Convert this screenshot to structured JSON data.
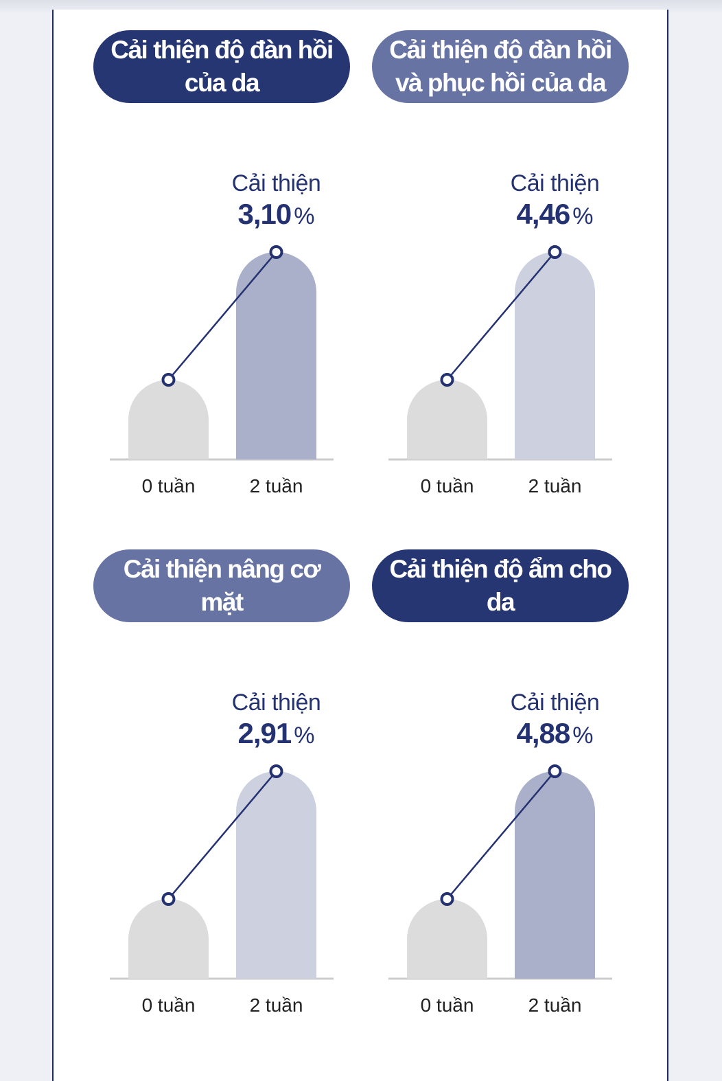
{
  "colors": {
    "navy": "#263673",
    "slate": "#6773a3",
    "baseline_bar": "#dcdcdc",
    "strong_bar": "#aab0c9",
    "light_bar": "#ccd0df",
    "line": "#253271",
    "axis": "#cccccc"
  },
  "chart_data": [
    {
      "type": "bar",
      "title": "Cải thiện độ đàn hồi của da",
      "title_lines": [
        "Cải thiện độ đàn hồi",
        "của da"
      ],
      "pill_color": "navy",
      "bar_color": "strong",
      "categories": [
        "0 tuần",
        "2 tuần"
      ],
      "values": [
        0,
        3.1
      ],
      "annotation": {
        "label": "Cải thiện",
        "value": "3,10",
        "unit": "%"
      }
    },
    {
      "type": "bar",
      "title": "Cải thiện độ đàn hồi và phục hồi của da",
      "title_lines": [
        "Cải thiện độ đàn hồi",
        "và phục hồi của da"
      ],
      "pill_color": "slate",
      "bar_color": "light",
      "categories": [
        "0 tuần",
        "2 tuần"
      ],
      "values": [
        0,
        4.46
      ],
      "annotation": {
        "label": "Cải thiện",
        "value": "4,46",
        "unit": "%"
      }
    },
    {
      "type": "bar",
      "title": "Cải thiện nâng cơ mặt",
      "title_lines": [
        "Cải thiện nâng cơ",
        "mặt"
      ],
      "pill_color": "slate",
      "bar_color": "light",
      "categories": [
        "0 tuần",
        "2 tuần"
      ],
      "values": [
        0,
        2.91
      ],
      "annotation": {
        "label": "Cải thiện",
        "value": "2,91",
        "unit": "%"
      }
    },
    {
      "type": "bar",
      "title": "Cải thiện độ ẩm cho da",
      "title_lines": [
        "Cải thiện độ ẩm cho",
        "da"
      ],
      "pill_color": "navy",
      "bar_color": "strong",
      "categories": [
        "0 tuần",
        "2 tuần"
      ],
      "values": [
        0,
        4.88
      ],
      "annotation": {
        "label": "Cải thiện",
        "value": "4,88",
        "unit": "%"
      }
    }
  ]
}
